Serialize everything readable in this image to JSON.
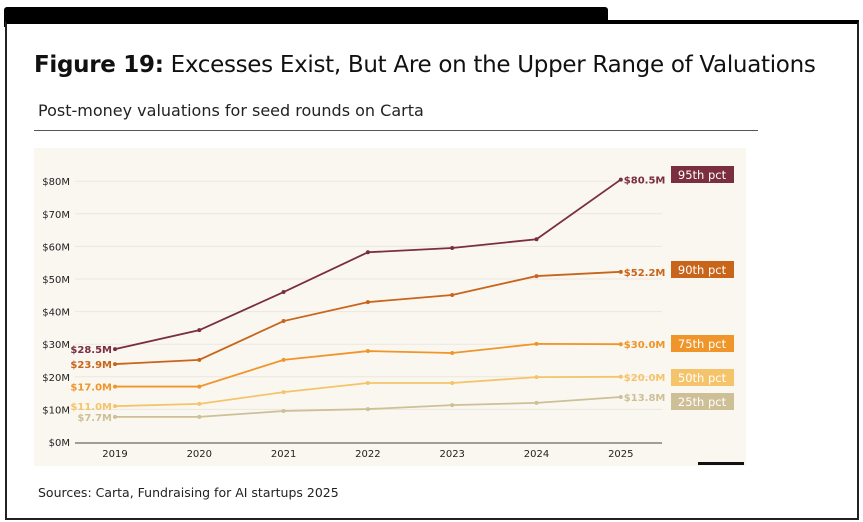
{
  "header": {
    "title_bold": "Figure 19:",
    "title_rest": " Excesses Exist, But Are on the Upper Range of Valuations",
    "subtitle": "Post-money valuations for seed rounds on Carta"
  },
  "footer": {
    "source": "Sources: Carta, Fundraising for AI startups 2025"
  },
  "chart_data": {
    "type": "line",
    "title": "Post-money valuations for seed rounds on Carta",
    "xlabel": "",
    "ylabel": "",
    "x": [
      "2019",
      "2020",
      "2021",
      "2022",
      "2023",
      "2024",
      "2025"
    ],
    "ylim": [
      0,
      80
    ],
    "yticks": [
      0,
      10,
      20,
      30,
      40,
      50,
      60,
      70,
      80
    ],
    "ytick_labels": [
      "$0M",
      "$10M",
      "$20M",
      "$30M",
      "$40M",
      "$50M",
      "$60M",
      "$70M",
      "$80M"
    ],
    "grid": true,
    "legend": "right (direct labels)",
    "series": [
      {
        "name": "95th pct",
        "color": "#7a2e3e",
        "values": [
          28.5,
          34.3,
          46.0,
          58.2,
          59.5,
          62.2,
          80.5
        ],
        "start_label": "$28.5M",
        "end_label": "$80.5M"
      },
      {
        "name": "90th pct",
        "color": "#c8651b",
        "values": [
          23.9,
          25.2,
          37.1,
          42.9,
          45.1,
          50.9,
          52.2
        ],
        "start_label": "$23.9M",
        "end_label": "$52.2M"
      },
      {
        "name": "75th pct",
        "color": "#f0952a",
        "values": [
          17.0,
          17.0,
          25.2,
          27.9,
          27.3,
          30.1,
          30.0
        ],
        "start_label": "$17.0M",
        "end_label": "$30.0M"
      },
      {
        "name": "50th pct",
        "color": "#f5c46a",
        "values": [
          11.0,
          11.7,
          15.3,
          18.1,
          18.1,
          19.9,
          20.0
        ],
        "start_label": "$11.0M",
        "end_label": "$20.0M"
      },
      {
        "name": "25th pct",
        "color": "#cdbf96",
        "values": [
          7.7,
          7.7,
          9.5,
          10.1,
          11.3,
          12.0,
          13.8
        ],
        "start_label": "$7.7M",
        "end_label": "$13.8M"
      }
    ]
  }
}
